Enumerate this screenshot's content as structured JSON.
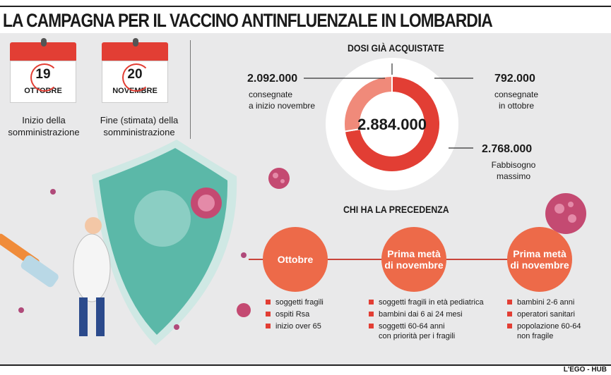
{
  "title": "LA CAMPAGNA PER IL VACCINO ANTINFLUENZALE IN LOMBARDIA",
  "credit": "L'EGO - HUB",
  "calendars": [
    {
      "day": "19",
      "month": "OTTOBRE",
      "caption_1": "Inizio della",
      "caption_2": "somministrazione"
    },
    {
      "day": "20",
      "month": "NOVEMBRE",
      "caption_1": "Fine (stimata) della",
      "caption_2": "somministrazione"
    }
  ],
  "doses": {
    "heading": "DOSI GIÀ ACQUISTATE",
    "total": "2.884.000",
    "left_value": "2.092.000",
    "left_caption_1": "consegnate",
    "left_caption_2": "a inizio novembre",
    "right_value": "792.000",
    "right_caption_1": "consegnate",
    "right_caption_2": "in ottobre",
    "need_value": "2.768.000",
    "need_caption_1": "Fabbisogno",
    "need_caption_2": "massimo"
  },
  "chart_data": {
    "type": "pie",
    "title": "DOSI GIÀ ACQUISTATE",
    "categories": [
      "consegnate a inizio novembre",
      "consegnate in ottobre"
    ],
    "values": [
      2092000,
      792000
    ],
    "total": 2884000,
    "reference": {
      "label": "Fabbisogno massimo",
      "value": 2768000
    },
    "colors": {
      "inizio_novembre": "#e23e34",
      "ottobre": "#f08a7a",
      "accent": "#ed6a49"
    }
  },
  "priority": {
    "heading": "CHI HA LA PRECEDENZA",
    "phases": [
      {
        "label_1": "Ottobre",
        "label_2": "",
        "items": [
          "soggetti fragili",
          "ospiti Rsa",
          "inizio over 65"
        ]
      },
      {
        "label_1": "Prima metà",
        "label_2": "di novembre",
        "items": [
          "soggetti fragili in età pediatrica",
          "bambini dai 6 ai 24 mesi",
          "soggetti 60-64 anni",
          "con priorità per i fragili"
        ]
      },
      {
        "label_1": "Prima metà",
        "label_2": "di novembre",
        "items": [
          "bambini 2-6 anni",
          "operatori sanitari",
          "popolazione 60-64",
          "non fragile"
        ]
      }
    ]
  }
}
